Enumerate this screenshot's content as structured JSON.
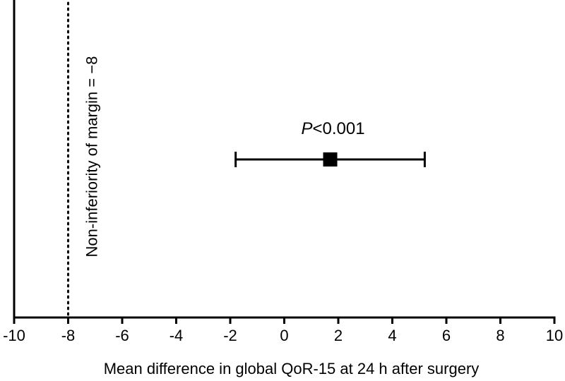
{
  "chart_data": {
    "type": "scatter",
    "title": "",
    "xlabel": "Mean difference in global QoR-15 at 24 h after surgery",
    "ylabel": "",
    "xlim": [
      -10,
      10
    ],
    "xticks": [
      -10,
      -8,
      -6,
      -4,
      -2,
      0,
      2,
      4,
      6,
      8,
      10
    ],
    "xtick_labels": [
      "-10",
      "-8",
      "-6",
      "-4",
      "-2",
      "0",
      "2",
      "4",
      "6",
      "8",
      "10"
    ],
    "grid": false,
    "point": {
      "estimate": 1.7,
      "ci_lower": -1.8,
      "ci_upper": 5.2,
      "marker": "square"
    },
    "p_value_label": {
      "italic": "P",
      "rest": "<0.001"
    },
    "reference_line": {
      "x": -8,
      "style": "dotted",
      "label": "Non-inferiority of margin = −8"
    }
  }
}
